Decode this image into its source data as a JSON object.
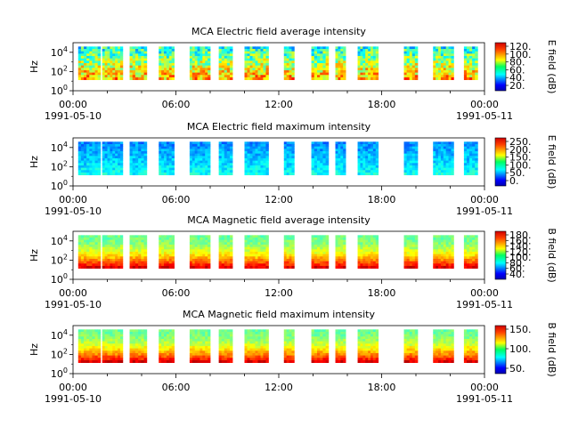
{
  "chart_data": [
    {
      "type": "heatmap",
      "title": "MCA  Electric field average intensity",
      "ylabel": "Hz",
      "y_scale": "log",
      "ylim": [
        1,
        100000
      ],
      "y_ticks": [
        {
          "base": "10",
          "exp": "0"
        },
        {
          "base": "10",
          "exp": "2"
        },
        {
          "base": "10",
          "exp": "4"
        }
      ],
      "x_ticks": [
        "00:00",
        "06:00",
        "12:00",
        "18:00",
        "00:00"
      ],
      "x_dates": [
        "1991-05-10",
        "1991-05-11"
      ],
      "colorbar": {
        "label": "E field (dB)",
        "ticks": [
          "20.",
          "40.",
          "60.",
          "80.",
          "100.",
          "120."
        ]
      },
      "segments": [
        [
          0.3,
          1.6
        ],
        [
          1.7,
          2.9
        ],
        [
          3.3,
          4.3
        ],
        [
          5.0,
          5.9
        ],
        [
          6.8,
          8.0
        ],
        [
          8.5,
          9.3
        ],
        [
          10.0,
          11.4
        ],
        [
          12.3,
          12.9
        ],
        [
          13.9,
          14.9
        ],
        [
          15.3,
          15.9
        ],
        [
          16.6,
          17.8
        ],
        [
          19.3,
          20.1
        ],
        [
          21.0,
          22.2
        ],
        [
          22.8,
          23.6
        ]
      ],
      "low_freq_floor": 1.15,
      "tone": "mid"
    },
    {
      "type": "heatmap",
      "title": "MCA  Electric field maximum intensity",
      "ylabel": "Hz",
      "y_scale": "log",
      "ylim": [
        1,
        100000
      ],
      "y_ticks": [
        {
          "base": "10",
          "exp": "0"
        },
        {
          "base": "10",
          "exp": "2"
        },
        {
          "base": "10",
          "exp": "4"
        }
      ],
      "x_ticks": [
        "00:00",
        "06:00",
        "12:00",
        "18:00",
        "00:00"
      ],
      "x_dates": [
        "1991-05-10",
        "1991-05-11"
      ],
      "colorbar": {
        "label": "E field (dB)",
        "ticks": [
          "0.",
          "50.",
          "100.",
          "150.",
          "200.",
          "250."
        ]
      },
      "segments": [
        [
          0.3,
          1.6
        ],
        [
          1.7,
          2.9
        ],
        [
          3.3,
          4.3
        ],
        [
          5.0,
          5.9
        ],
        [
          6.8,
          8.0
        ],
        [
          8.5,
          9.3
        ],
        [
          10.0,
          11.4
        ],
        [
          12.3,
          12.9
        ],
        [
          13.9,
          14.9
        ],
        [
          15.3,
          15.9
        ],
        [
          16.6,
          17.8
        ],
        [
          19.3,
          20.1
        ],
        [
          21.0,
          22.2
        ],
        [
          22.8,
          23.6
        ]
      ],
      "low_freq_floor": 1.15,
      "tone": "low"
    },
    {
      "type": "heatmap",
      "title": "MCA  Magnetic field average intensity",
      "ylabel": "Hz",
      "y_scale": "log",
      "ylim": [
        1,
        100000
      ],
      "y_ticks": [
        {
          "base": "10",
          "exp": "0"
        },
        {
          "base": "10",
          "exp": "2"
        },
        {
          "base": "10",
          "exp": "4"
        }
      ],
      "x_ticks": [
        "00:00",
        "06:00",
        "12:00",
        "18:00",
        "00:00"
      ],
      "x_dates": [
        "1991-05-10",
        "1991-05-11"
      ],
      "colorbar": {
        "label": "B field (dB)",
        "ticks": [
          "40.",
          "60.",
          "80.",
          "100.",
          "120.",
          "140.",
          "160.",
          "180."
        ]
      },
      "segments": [
        [
          0.3,
          1.6
        ],
        [
          1.7,
          2.9
        ],
        [
          3.3,
          4.3
        ],
        [
          5.0,
          5.9
        ],
        [
          6.8,
          8.0
        ],
        [
          8.5,
          9.3
        ],
        [
          10.0,
          11.4
        ],
        [
          12.3,
          12.9
        ],
        [
          13.9,
          14.9
        ],
        [
          15.3,
          15.9
        ],
        [
          16.6,
          17.8
        ],
        [
          19.3,
          20.1
        ],
        [
          21.0,
          22.2
        ],
        [
          22.8,
          23.6
        ]
      ],
      "low_freq_floor": 1.15,
      "tone": "mag"
    },
    {
      "type": "heatmap",
      "title": "MCA  Magnetic field maximum intensity",
      "ylabel": "Hz",
      "y_scale": "log",
      "ylim": [
        1,
        100000
      ],
      "y_ticks": [
        {
          "base": "10",
          "exp": "0"
        },
        {
          "base": "10",
          "exp": "2"
        },
        {
          "base": "10",
          "exp": "4"
        }
      ],
      "x_ticks": [
        "00:00",
        "06:00",
        "12:00",
        "18:00",
        "00:00"
      ],
      "x_dates": [
        "1991-05-10",
        "1991-05-11"
      ],
      "colorbar": {
        "label": "B field (dB)",
        "ticks": [
          "50.",
          "100.",
          "150."
        ]
      },
      "segments": [
        [
          0.3,
          1.6
        ],
        [
          1.7,
          2.9
        ],
        [
          3.3,
          4.3
        ],
        [
          5.0,
          5.9
        ],
        [
          6.8,
          8.0
        ],
        [
          8.5,
          9.3
        ],
        [
          10.0,
          11.4
        ],
        [
          12.3,
          12.9
        ],
        [
          13.9,
          14.9
        ],
        [
          15.3,
          15.9
        ],
        [
          16.6,
          17.8
        ],
        [
          19.3,
          20.1
        ],
        [
          21.0,
          22.2
        ],
        [
          22.8,
          23.6
        ]
      ],
      "low_freq_floor": 1.15,
      "tone": "mag"
    }
  ]
}
